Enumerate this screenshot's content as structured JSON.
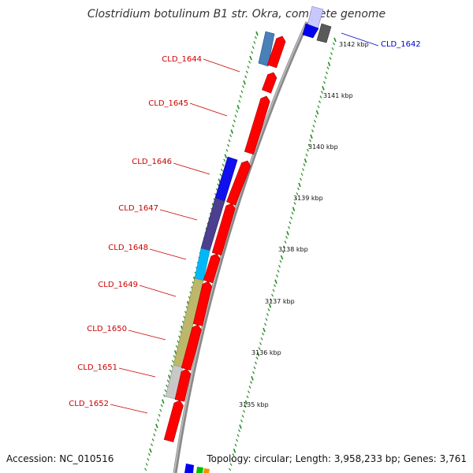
{
  "title": "Clostridium botulinum B1 str. Okra, complete genome",
  "accession": "Accession: NC_010516",
  "topology": "Topology: circular; Length: 3,958,233 bp; Genes: 3,761",
  "colors": {
    "backbone": "#808080",
    "tick": "#228b22",
    "forward_gene": "#ff0000",
    "label_red": "#cc0000",
    "label_blue": "#0000cc"
  },
  "gene_labels": [
    {
      "text": "CLD_1644",
      "color": "#cc0000"
    },
    {
      "text": "CLD_1645",
      "color": "#cc0000"
    },
    {
      "text": "CLD_1646",
      "color": "#cc0000"
    },
    {
      "text": "CLD_1647",
      "color": "#cc0000"
    },
    {
      "text": "CLD_1648",
      "color": "#cc0000"
    },
    {
      "text": "CLD_1649",
      "color": "#cc0000"
    },
    {
      "text": "CLD_1650",
      "color": "#cc0000"
    },
    {
      "text": "CLD_1651",
      "color": "#cc0000"
    },
    {
      "text": "CLD_1652",
      "color": "#cc0000"
    },
    {
      "text": "CLD_1642",
      "color": "#0000cc"
    }
  ],
  "scale_labels": [
    "3142 kbp",
    "3141 kbp",
    "3140 kbp",
    "3139 kbp",
    "3138 kbp",
    "3137 kbp",
    "3136 kbp",
    "3135 kbp"
  ],
  "feature_colors": [
    "#4a80b8",
    "#0000ee",
    "#483d8b",
    "#00bfff",
    "#bdb76b",
    "#c8c8c8",
    "#696969",
    "#c8c8ff",
    "#00c000",
    "#ff8c00"
  ]
}
